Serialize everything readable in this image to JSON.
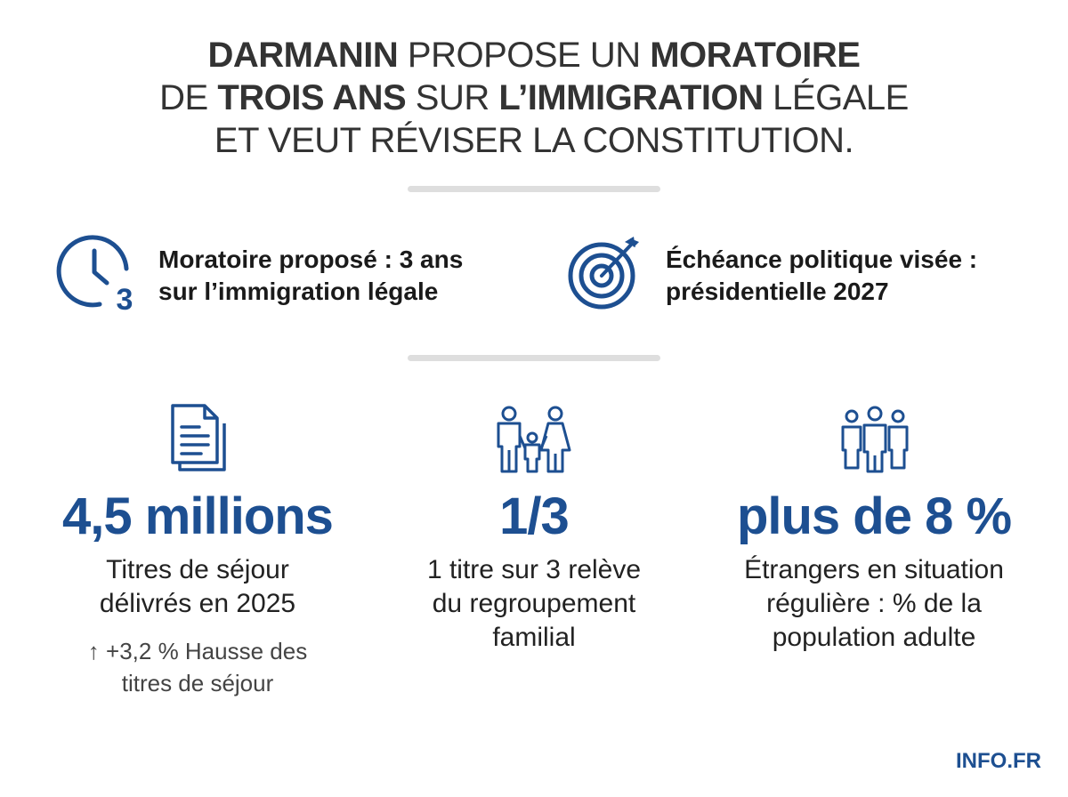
{
  "header": {
    "title_lines": [
      [
        "DARMANIN",
        "PROPOSE UN",
        "MORATOIRE"
      ],
      [
        "DE",
        "TROIS ANS",
        "SUR",
        "L’IMMIGRATION",
        "LÉGALE"
      ],
      [
        "ET VEUT RÉVISER LA CONSTITUTION."
      ]
    ]
  },
  "facts": [
    {
      "icon_label": "3",
      "lines": [
        "Moratoire proposé : 3 ans",
        "sur l’immigration légale"
      ]
    },
    {
      "lines": [
        "Échéance politique visée :",
        "présidentielle 2027"
      ]
    }
  ],
  "stats": [
    {
      "value": "4,5 millions",
      "description": [
        "Titres de séjour",
        "délivrés en 2025"
      ],
      "note": [
        "+3,2 % Hausse des",
        "titres de séjour"
      ]
    },
    {
      "value": "1/3",
      "description": [
        "1 titre sur 3 relève",
        "du regroupement",
        "familial"
      ]
    },
    {
      "value": "plus de 8 %",
      "description": [
        "Étrangers en situation",
        "régulière : % de la",
        "population adulte"
      ]
    }
  ],
  "footer": {
    "source": "INFO.FR"
  }
}
